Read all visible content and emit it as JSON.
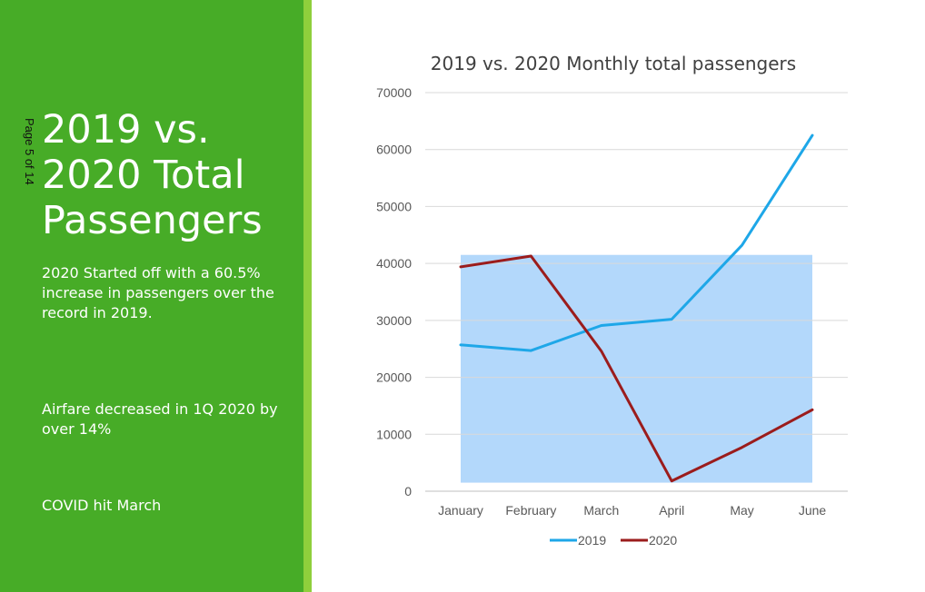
{
  "sidebar": {
    "page_indicator": "Page 5 of 14",
    "title": "2019 vs. 2020 Total Passengers",
    "notes": [
      "2020 Started off with a 60.5% increase in passengers over the record in 2019.",
      "Airfare decreased in 1Q 2020 by over 14%",
      "COVID hit March"
    ],
    "colors": {
      "background": "#47ac27",
      "accent_edge": "#8fcf3c",
      "text": "#ffffff"
    }
  },
  "chart_data": {
    "type": "line",
    "title": "2019 vs. 2020 Monthly total passengers",
    "categories": [
      "January",
      "February",
      "March",
      "April",
      "May",
      "June"
    ],
    "series": [
      {
        "name": "2019",
        "color": "#1ea7e8",
        "values": [
          25700,
          24700,
          29100,
          30200,
          43200,
          62500
        ]
      },
      {
        "name": "2020",
        "color": "#9b1c1c",
        "values": [
          39400,
          41300,
          24600,
          1800,
          7700,
          14300
        ]
      }
    ],
    "y_ticks": [
      "0",
      "10000",
      "20000",
      "30000",
      "40000",
      "50000",
      "60000",
      "70000"
    ],
    "ylim": [
      0,
      70000
    ],
    "grid": true,
    "legend_position": "bottom",
    "highlight_band": {
      "x_from": "January",
      "x_to": "June",
      "y_from": 1500,
      "y_to": 41500,
      "color": "#b3d8fb"
    }
  }
}
